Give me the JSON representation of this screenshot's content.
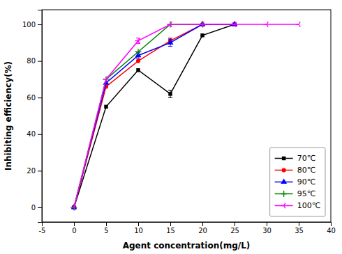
{
  "chart_data": {
    "type": "line",
    "xlabel": "Agent concentration(mg/L)",
    "ylabel": "Inhibiting efficiency(%)",
    "series": [
      {
        "name": "70℃",
        "color": "black",
        "marker": "square",
        "x": [
          0,
          5,
          10,
          15,
          20,
          25
        ],
        "values": [
          0,
          55,
          75,
          62,
          94,
          100
        ],
        "yerr": [
          0,
          0,
          0,
          2.0,
          0,
          0
        ]
      },
      {
        "name": "80℃",
        "color": "red",
        "marker": "circle",
        "x": [
          0,
          5,
          10,
          15,
          20,
          25
        ],
        "values": [
          0,
          66,
          80,
          91,
          100,
          100
        ],
        "yerr": [
          0,
          0,
          0,
          1.5,
          0,
          0
        ]
      },
      {
        "name": "90℃",
        "color": "blue",
        "marker": "triangle-up",
        "x": [
          0,
          5,
          10,
          15,
          20,
          25
        ],
        "values": [
          0,
          68,
          83,
          90,
          100,
          100
        ],
        "yerr": [
          0,
          0,
          1.5,
          2.0,
          0,
          0
        ]
      },
      {
        "name": "95℃",
        "color": "green",
        "marker": "plus",
        "x": [
          0,
          5,
          10,
          15,
          20
        ],
        "values": [
          0,
          70,
          85,
          100,
          100
        ],
        "yerr": [
          0,
          0,
          0,
          0,
          0
        ]
      },
      {
        "name": "100℃",
        "color": "magenta",
        "marker": "tri-left",
        "x": [
          0,
          5,
          10,
          15,
          20,
          25,
          30,
          35
        ],
        "values": [
          0,
          70,
          91,
          100,
          100,
          100,
          100,
          100
        ],
        "yerr": [
          0,
          0,
          1.5,
          0,
          0,
          0,
          0,
          0
        ]
      }
    ],
    "xlim": [
      -5,
      40
    ],
    "ylim": [
      -8,
      108
    ],
    "xticks": [
      -5,
      0,
      5,
      10,
      15,
      20,
      25,
      30,
      35,
      40
    ],
    "yticks": [
      0,
      20,
      40,
      60,
      80,
      100
    ],
    "legend": "lower right",
    "grid": false
  }
}
